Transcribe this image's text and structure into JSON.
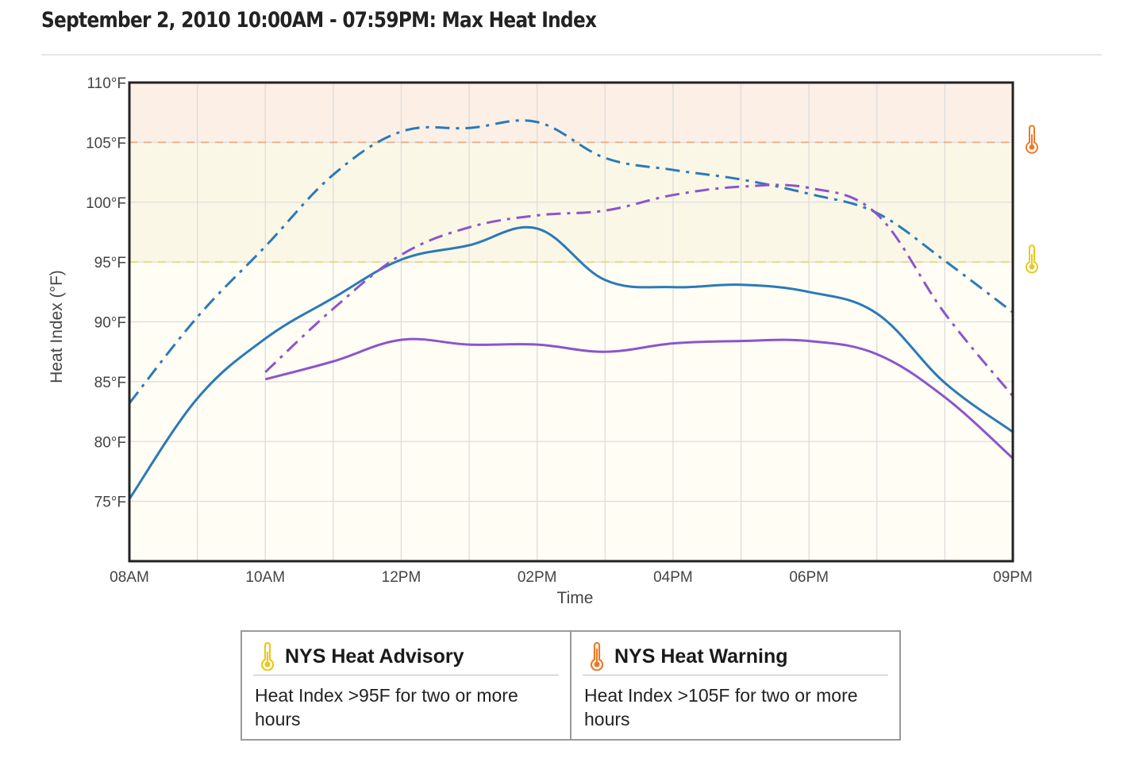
{
  "page": {
    "title": "September 2, 2010 10:00AM - 07:59PM: Max Heat Index"
  },
  "legend": [
    {
      "icon": "thermometer-yellow-icon",
      "color": "#e8c91c",
      "title": "NYS Heat Advisory",
      "description": "Heat Index >95F for two or more hours"
    },
    {
      "icon": "thermometer-orange-icon",
      "color": "#ec7a28",
      "title": "NYS Heat Warning",
      "description": "Heat Index >105F for two or more hours"
    }
  ],
  "chart_data": {
    "type": "line",
    "title": "",
    "xlabel": "Time",
    "ylabel": "Heat Index (°F)",
    "x_range_hours": [
      8,
      21
    ],
    "ylim": [
      70,
      110
    ],
    "y_ticks": [
      {
        "value": 75,
        "label": "75°F"
      },
      {
        "value": 80,
        "label": "80°F"
      },
      {
        "value": 85,
        "label": "85°F"
      },
      {
        "value": 90,
        "label": "90°F"
      },
      {
        "value": 95,
        "label": "95°F"
      },
      {
        "value": 100,
        "label": "100°F"
      },
      {
        "value": 105,
        "label": "105°F"
      },
      {
        "value": 110,
        "label": "110°F"
      }
    ],
    "x_ticks": [
      {
        "hour": 8,
        "label": "08AM"
      },
      {
        "hour": 10,
        "label": "10AM"
      },
      {
        "hour": 12,
        "label": "12PM"
      },
      {
        "hour": 14,
        "label": "02PM"
      },
      {
        "hour": 16,
        "label": "04PM"
      },
      {
        "hour": 18,
        "label": "06PM"
      },
      {
        "hour": 21,
        "label": "09PM"
      }
    ],
    "grid": true,
    "thresholds": [
      {
        "value": 95,
        "band_to": 105,
        "color": "#e8c91c",
        "band_color": "#fbf7e6",
        "icon": "thermometer-yellow-icon"
      },
      {
        "value": 105,
        "band_to": 110,
        "color": "#ec7a28",
        "band_color": "#fcefe6",
        "icon": "thermometer-orange-icon"
      }
    ],
    "below_band_color": "#fffdf4",
    "series": [
      {
        "color": "#2a7ab8",
        "dash": "solid",
        "x": [
          8,
          9,
          10,
          11,
          12,
          13,
          14,
          15,
          16,
          17,
          18,
          19,
          20,
          21
        ],
        "y": [
          75.2,
          83.6,
          88.6,
          92.0,
          95.2,
          96.4,
          97.8,
          93.5,
          92.9,
          93.1,
          92.5,
          90.7,
          84.9,
          80.8
        ]
      },
      {
        "color": "#8b55cc",
        "dash": "solid",
        "x": [
          10,
          11,
          12,
          13,
          14,
          15,
          16,
          17,
          18,
          19,
          20,
          21
        ],
        "y": [
          85.2,
          86.7,
          88.5,
          88.1,
          88.1,
          87.5,
          88.2,
          88.4,
          88.4,
          87.3,
          83.7,
          78.6
        ]
      },
      {
        "color": "#2a7ab8",
        "dash": "dashdot",
        "x": [
          8,
          9,
          10,
          11,
          12,
          13,
          14,
          15,
          16,
          17,
          18,
          19,
          20,
          21
        ],
        "y": [
          83.2,
          90.4,
          96.3,
          102.3,
          105.9,
          106.2,
          106.7,
          103.7,
          102.7,
          101.9,
          100.7,
          99.1,
          95.1,
          90.8
        ]
      },
      {
        "color": "#8b55cc",
        "dash": "dashdot",
        "x": [
          10,
          11,
          12,
          13,
          14,
          15,
          16,
          17,
          18,
          19,
          20,
          21
        ],
        "y": [
          85.8,
          91.1,
          95.6,
          97.9,
          98.9,
          99.3,
          100.6,
          101.3,
          101.2,
          99.0,
          90.7,
          83.8
        ]
      }
    ]
  }
}
